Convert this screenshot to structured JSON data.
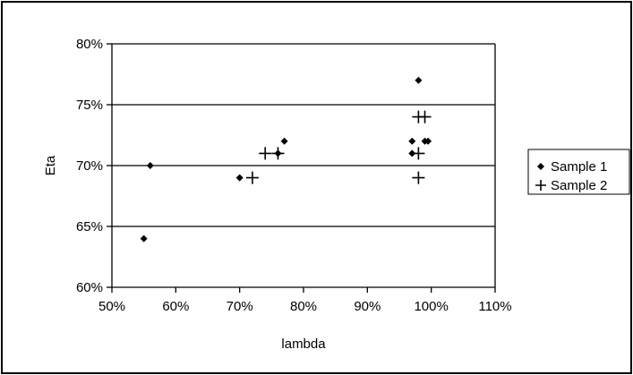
{
  "chart_data": {
    "type": "scatter",
    "title": "",
    "xlabel": "lambda",
    "ylabel": "Eta",
    "xlim": [
      0.5,
      1.1
    ],
    "ylim": [
      0.6,
      0.8
    ],
    "x_ticks": [
      0.5,
      0.6,
      0.7,
      0.8,
      0.9,
      1.0,
      1.1
    ],
    "x_tick_labels": [
      "50%",
      "60%",
      "70%",
      "80%",
      "90%",
      "100%",
      "110%"
    ],
    "y_ticks": [
      0.6,
      0.65,
      0.7,
      0.75,
      0.8
    ],
    "y_tick_labels": [
      "60%",
      "65%",
      "70%",
      "75%",
      "80%"
    ],
    "grid": "horizontal major gridlines",
    "legend_position": "right",
    "series": [
      {
        "name": "Sample 1",
        "marker": "diamond",
        "color": "#000000",
        "points": [
          {
            "x": 0.55,
            "y": 0.64
          },
          {
            "x": 0.56,
            "y": 0.7
          },
          {
            "x": 0.7,
            "y": 0.69
          },
          {
            "x": 0.76,
            "y": 0.71
          },
          {
            "x": 0.77,
            "y": 0.72
          },
          {
            "x": 0.97,
            "y": 0.71
          },
          {
            "x": 0.97,
            "y": 0.72
          },
          {
            "x": 0.98,
            "y": 0.77
          },
          {
            "x": 0.99,
            "y": 0.72
          },
          {
            "x": 0.995,
            "y": 0.72
          }
        ]
      },
      {
        "name": "Sample 2",
        "marker": "plus",
        "color": "#000000",
        "points": [
          {
            "x": 0.72,
            "y": 0.69
          },
          {
            "x": 0.74,
            "y": 0.71
          },
          {
            "x": 0.76,
            "y": 0.71
          },
          {
            "x": 0.98,
            "y": 0.69
          },
          {
            "x": 0.98,
            "y": 0.71
          },
          {
            "x": 0.98,
            "y": 0.74
          },
          {
            "x": 0.99,
            "y": 0.74
          }
        ]
      }
    ]
  }
}
